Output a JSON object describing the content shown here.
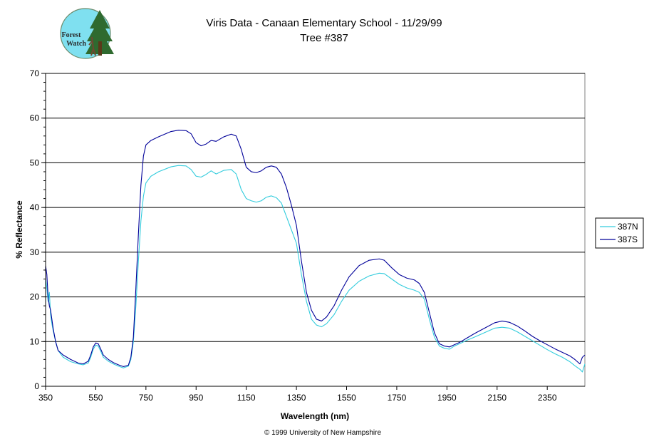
{
  "logo": {
    "text_line1": "Forest",
    "text_line2": "Watch",
    "icon": "forest-watch-logo"
  },
  "footer": {
    "copyright": "© 1999 University of New Hampshire"
  },
  "chart_data": {
    "type": "line",
    "title": "Viris Data - Canaan Elementary School - 11/29/99",
    "subtitle": "Tree #387",
    "xlabel": "Wavelength (nm)",
    "ylabel": "% Reflectance",
    "xlim": [
      350,
      2500
    ],
    "ylim": [
      0,
      70
    ],
    "xticks": [
      "350",
      "550",
      "750",
      "950",
      "1150",
      "1350",
      "1550",
      "1750",
      "1950",
      "2150",
      "2350"
    ],
    "xtick_values": [
      350,
      550,
      750,
      950,
      1150,
      1350,
      1550,
      1750,
      1950,
      2150,
      2350
    ],
    "yticks": [
      "0",
      "10",
      "20",
      "30",
      "40",
      "50",
      "60",
      "70"
    ],
    "ytick_values": [
      0,
      10,
      20,
      30,
      40,
      50,
      60,
      70
    ],
    "grid": "horizontal",
    "legend_position": "right",
    "series": [
      {
        "name": "387N",
        "color": "#33ccdd",
        "points": [
          [
            350,
            24
          ],
          [
            355,
            22
          ],
          [
            360,
            19
          ],
          [
            365,
            21
          ],
          [
            370,
            16
          ],
          [
            375,
            14
          ],
          [
            380,
            12.5
          ],
          [
            390,
            10
          ],
          [
            400,
            8
          ],
          [
            420,
            6.5
          ],
          [
            450,
            5.5
          ],
          [
            480,
            5
          ],
          [
            500,
            4.8
          ],
          [
            520,
            5.2
          ],
          [
            530,
            6.5
          ],
          [
            540,
            8.3
          ],
          [
            550,
            9.2
          ],
          [
            560,
            9
          ],
          [
            570,
            7.8
          ],
          [
            580,
            6.5
          ],
          [
            600,
            5.6
          ],
          [
            620,
            5
          ],
          [
            640,
            4.5
          ],
          [
            660,
            4.1
          ],
          [
            680,
            4.5
          ],
          [
            690,
            6
          ],
          [
            700,
            10
          ],
          [
            710,
            18
          ],
          [
            720,
            28
          ],
          [
            730,
            37
          ],
          [
            740,
            42.5
          ],
          [
            750,
            45.5
          ],
          [
            770,
            47
          ],
          [
            800,
            48
          ],
          [
            850,
            49.1
          ],
          [
            880,
            49.4
          ],
          [
            910,
            49.3
          ],
          [
            930,
            48.5
          ],
          [
            950,
            47
          ],
          [
            970,
            46.8
          ],
          [
            990,
            47.4
          ],
          [
            1010,
            48.2
          ],
          [
            1030,
            47.5
          ],
          [
            1060,
            48.3
          ],
          [
            1090,
            48.5
          ],
          [
            1110,
            47.5
          ],
          [
            1130,
            44
          ],
          [
            1150,
            42
          ],
          [
            1170,
            41.5
          ],
          [
            1190,
            41.2
          ],
          [
            1210,
            41.5
          ],
          [
            1230,
            42.3
          ],
          [
            1250,
            42.6
          ],
          [
            1270,
            42.2
          ],
          [
            1290,
            41
          ],
          [
            1310,
            38
          ],
          [
            1330,
            35
          ],
          [
            1350,
            32
          ],
          [
            1370,
            25
          ],
          [
            1390,
            19
          ],
          [
            1410,
            15
          ],
          [
            1430,
            13.7
          ],
          [
            1450,
            13.3
          ],
          [
            1470,
            14
          ],
          [
            1500,
            16
          ],
          [
            1530,
            19
          ],
          [
            1560,
            21.5
          ],
          [
            1600,
            23.5
          ],
          [
            1640,
            24.7
          ],
          [
            1680,
            25.3
          ],
          [
            1700,
            25.2
          ],
          [
            1730,
            24
          ],
          [
            1760,
            22.8
          ],
          [
            1790,
            22
          ],
          [
            1820,
            21.5
          ],
          [
            1840,
            21
          ],
          [
            1860,
            19.5
          ],
          [
            1880,
            15
          ],
          [
            1900,
            11
          ],
          [
            1920,
            9
          ],
          [
            1940,
            8.5
          ],
          [
            1960,
            8.3
          ],
          [
            1980,
            9
          ],
          [
            2000,
            9.5
          ],
          [
            2030,
            10.3
          ],
          [
            2060,
            11
          ],
          [
            2100,
            12
          ],
          [
            2140,
            13
          ],
          [
            2170,
            13.2
          ],
          [
            2200,
            13
          ],
          [
            2230,
            12.2
          ],
          [
            2260,
            11.2
          ],
          [
            2290,
            10.2
          ],
          [
            2320,
            9.2
          ],
          [
            2350,
            8.2
          ],
          [
            2380,
            7.3
          ],
          [
            2410,
            6.5
          ],
          [
            2440,
            5.5
          ],
          [
            2460,
            4.6
          ],
          [
            2480,
            3.8
          ],
          [
            2490,
            3.2
          ],
          [
            2500,
            5
          ]
        ]
      },
      {
        "name": "387S",
        "color": "#000099",
        "points": [
          [
            350,
            27
          ],
          [
            355,
            25
          ],
          [
            360,
            20
          ],
          [
            365,
            18
          ],
          [
            370,
            17
          ],
          [
            375,
            15
          ],
          [
            380,
            13
          ],
          [
            390,
            10
          ],
          [
            400,
            8
          ],
          [
            420,
            7
          ],
          [
            450,
            6
          ],
          [
            480,
            5.2
          ],
          [
            500,
            5
          ],
          [
            520,
            5.6
          ],
          [
            530,
            7
          ],
          [
            540,
            8.8
          ],
          [
            550,
            9.7
          ],
          [
            560,
            9.5
          ],
          [
            570,
            8.3
          ],
          [
            580,
            7
          ],
          [
            600,
            6
          ],
          [
            620,
            5.3
          ],
          [
            640,
            4.8
          ],
          [
            660,
            4.4
          ],
          [
            680,
            4.7
          ],
          [
            690,
            6.5
          ],
          [
            700,
            11
          ],
          [
            710,
            22
          ],
          [
            720,
            34
          ],
          [
            730,
            45
          ],
          [
            740,
            51.5
          ],
          [
            750,
            54
          ],
          [
            770,
            55
          ],
          [
            800,
            55.8
          ],
          [
            850,
            57
          ],
          [
            880,
            57.3
          ],
          [
            910,
            57.2
          ],
          [
            930,
            56.5
          ],
          [
            950,
            54.5
          ],
          [
            970,
            53.8
          ],
          [
            990,
            54.2
          ],
          [
            1010,
            55
          ],
          [
            1030,
            54.8
          ],
          [
            1060,
            55.8
          ],
          [
            1090,
            56.4
          ],
          [
            1110,
            56
          ],
          [
            1130,
            53
          ],
          [
            1150,
            49
          ],
          [
            1170,
            48
          ],
          [
            1190,
            47.8
          ],
          [
            1210,
            48.2
          ],
          [
            1230,
            49
          ],
          [
            1250,
            49.3
          ],
          [
            1270,
            49
          ],
          [
            1290,
            47.5
          ],
          [
            1310,
            44.5
          ],
          [
            1330,
            40.5
          ],
          [
            1350,
            36
          ],
          [
            1370,
            28
          ],
          [
            1390,
            21
          ],
          [
            1410,
            17
          ],
          [
            1430,
            15
          ],
          [
            1450,
            14.6
          ],
          [
            1470,
            15.5
          ],
          [
            1500,
            18
          ],
          [
            1530,
            21.5
          ],
          [
            1560,
            24.5
          ],
          [
            1600,
            27
          ],
          [
            1640,
            28.2
          ],
          [
            1680,
            28.5
          ],
          [
            1700,
            28.2
          ],
          [
            1730,
            26.5
          ],
          [
            1760,
            25
          ],
          [
            1790,
            24.2
          ],
          [
            1820,
            23.8
          ],
          [
            1840,
            23
          ],
          [
            1860,
            21
          ],
          [
            1880,
            16.5
          ],
          [
            1900,
            12
          ],
          [
            1920,
            9.5
          ],
          [
            1940,
            9
          ],
          [
            1960,
            8.8
          ],
          [
            1980,
            9.3
          ],
          [
            2000,
            9.8
          ],
          [
            2030,
            10.8
          ],
          [
            2060,
            11.8
          ],
          [
            2100,
            13
          ],
          [
            2140,
            14.2
          ],
          [
            2170,
            14.6
          ],
          [
            2200,
            14.3
          ],
          [
            2230,
            13.5
          ],
          [
            2260,
            12.4
          ],
          [
            2290,
            11.2
          ],
          [
            2320,
            10.2
          ],
          [
            2350,
            9.3
          ],
          [
            2380,
            8.4
          ],
          [
            2410,
            7.6
          ],
          [
            2440,
            6.8
          ],
          [
            2460,
            6
          ],
          [
            2480,
            5
          ],
          [
            2490,
            6.5
          ],
          [
            2500,
            7
          ]
        ]
      }
    ]
  }
}
